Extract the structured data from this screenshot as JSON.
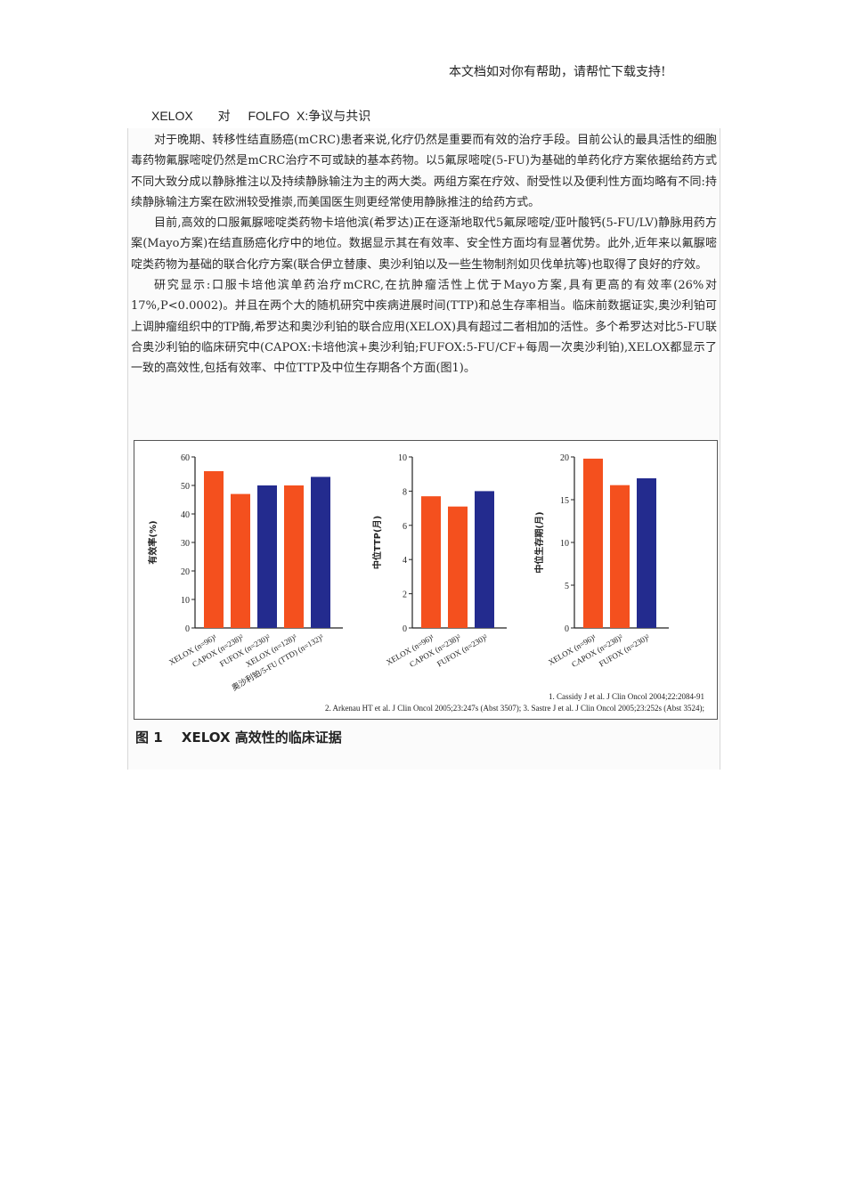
{
  "header_note": "本文档如对你有帮助，请帮忙下载支持!",
  "title": {
    "part1": "XELOX",
    "part2": "对",
    "part3": "FOLFO",
    "part4": "X:争议与共识"
  },
  "paragraphs": [
    "对于晚期、转移性结直肠癌(mCRC)患者来说,化疗仍然是重要而有效的治疗手段。目前公认的最具活性的细胞毒药物氟脲嘧啶仍然是mCRC治疗不可或缺的基本药物。以5氟尿嘧啶(5-FU)为基础的单药化疗方案依据给药方式不同大致分成以静脉推注以及持续静脉输注为主的两大类。两组方案在疗效、耐受性以及便利性方面均略有不同:持续静脉输注方案在欧洲较受推崇,而美国医生则更经常使用静脉推注的给药方式。",
    "目前,高效的口服氟脲嘧啶类药物卡培他滨(希罗达)正在逐渐地取代5氟尿嘧啶/亚叶酸钙(5-FU/LV)静脉用药方案(Mayo方案)在结直肠癌化疗中的地位。数据显示其在有效率、安全性方面均有显著优势。此外,近年来以氟脲嘧啶类药物为基础的联合化疗方案(联合伊立替康、奥沙利铂以及一些生物制剂如贝伐单抗等)也取得了良好的疗效。",
    "研究显示:口服卡培他滨单药治疗mCRC,在抗肿瘤活性上优于Mayo方案,具有更高的有效率(26%对17%,P<0.0002)。并且在两个大的随机研究中疾病进展时间(TTP)和总生存率相当。临床前数据证实,奥沙利铂可上调肿瘤组织中的TP酶,希罗达和奥沙利铂的联合应用(XELOX)具有超过二者相加的活性。多个希罗达对比5-FU联合奥沙利铂的临床研究中(CAPOX:卡培他滨+奥沙利铂;FUFOX:5-FU/CF+每周一次奥沙利铂),XELOX都显示了一致的高效性,包括有效率、中位TTP及中位生存期各个方面(图1)。"
  ],
  "colors": {
    "orange": "#f4501e",
    "blue": "#232b8e"
  },
  "chart_data": [
    {
      "type": "bar",
      "ylabel": "有效率(%)",
      "ylim": [
        0,
        60
      ],
      "yticks": [
        0,
        10,
        20,
        30,
        40,
        50,
        60
      ],
      "categories": [
        "XELOX (n=96)¹",
        "CAPOX (n=238)²",
        "FUFOX (n=230)²",
        "XELOX (n=128)³",
        "奥沙利铂/5-FU (TTD) (n=132)³"
      ],
      "values": [
        55,
        47,
        50,
        50,
        53
      ],
      "bar_colors": [
        "orange",
        "orange",
        "blue",
        "orange",
        "blue"
      ]
    },
    {
      "type": "bar",
      "ylabel": "中位TTP(月)",
      "ylim": [
        0,
        10
      ],
      "yticks": [
        0,
        2,
        4,
        6,
        8,
        10
      ],
      "categories": [
        "XELOX (n=96)¹",
        "CAPOX (n=238)²",
        "FUFOX (n=230)²"
      ],
      "values": [
        7.7,
        7.1,
        8.0
      ],
      "bar_colors": [
        "orange",
        "orange",
        "blue"
      ]
    },
    {
      "type": "bar",
      "ylabel": "中位生存期(月)",
      "ylim": [
        0,
        20
      ],
      "yticks": [
        0,
        5,
        10,
        15,
        20
      ],
      "categories": [
        "XELOX (n=96)¹",
        "CAPOX (n=238)²",
        "FUFOX (n=230)²"
      ],
      "values": [
        19.8,
        16.7,
        17.5
      ],
      "bar_colors": [
        "orange",
        "orange",
        "blue"
      ]
    }
  ],
  "references": [
    "1. Cassidy J et al. J Clin Oncol 2004;22:2084-91",
    "2. Arkenau HT et al. J Clin Oncol 2005;23:247s (Abst 3507);  3. Sastre J et al. J Clin Oncol 2005;23:252s (Abst 3524);"
  ],
  "caption": {
    "number": "图 1",
    "text": "XELOX 高效性的临床证据"
  }
}
